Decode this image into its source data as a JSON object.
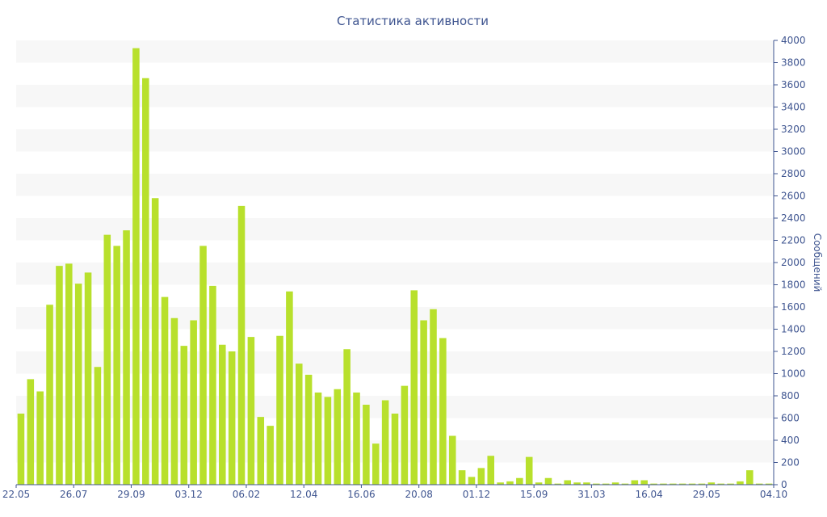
{
  "chart_data": {
    "type": "bar",
    "title": "Статистика активности",
    "xlabel": "",
    "ylabel": "Сообщений",
    "ylim": [
      0,
      4000
    ],
    "y_ticks": [
      0,
      200,
      400,
      600,
      800,
      1000,
      1200,
      1400,
      1600,
      1800,
      2000,
      2200,
      2400,
      2600,
      2800,
      3000,
      3200,
      3400,
      3600,
      3800,
      4000
    ],
    "y_axis_position": "right",
    "x_tick_labels": [
      {
        "index": 0,
        "label": "22.05"
      },
      {
        "index": 6,
        "label": "26.07"
      },
      {
        "index": 12,
        "label": "29.09"
      },
      {
        "index": 18,
        "label": "03.12"
      },
      {
        "index": 24,
        "label": "06.02"
      },
      {
        "index": 30,
        "label": "12.04"
      },
      {
        "index": 36,
        "label": "16.06"
      },
      {
        "index": 42,
        "label": "20.08"
      },
      {
        "index": 48,
        "label": "01.12"
      },
      {
        "index": 54,
        "label": "15.09"
      },
      {
        "index": 60,
        "label": "31.03"
      },
      {
        "index": 66,
        "label": "16.04"
      },
      {
        "index": 72,
        "label": "29.05"
      },
      {
        "index": 78,
        "label": "04.10"
      }
    ],
    "values": [
      640,
      950,
      840,
      1620,
      1970,
      1990,
      1810,
      1910,
      1060,
      2250,
      2150,
      2290,
      3930,
      3660,
      2580,
      1690,
      1500,
      1250,
      1480,
      2150,
      1790,
      1260,
      1200,
      2510,
      1330,
      610,
      530,
      1340,
      1740,
      1090,
      990,
      830,
      790,
      860,
      1220,
      830,
      720,
      370,
      760,
      640,
      890,
      1750,
      1480,
      1580,
      1320,
      440,
      130,
      70,
      150,
      260,
      20,
      30,
      60,
      250,
      20,
      60,
      10,
      40,
      20,
      20,
      10,
      10,
      20,
      10,
      40,
      40,
      10,
      10,
      10,
      10,
      10,
      10,
      20,
      10,
      10,
      30,
      130,
      10,
      10
    ],
    "grid": true,
    "grid_style": "alternating horizontal bands",
    "legend": "none",
    "colors": {
      "bar": "#b8e02c",
      "text": "#3f5590",
      "band": "#f7f7f7",
      "axis": "#3f5590"
    }
  }
}
